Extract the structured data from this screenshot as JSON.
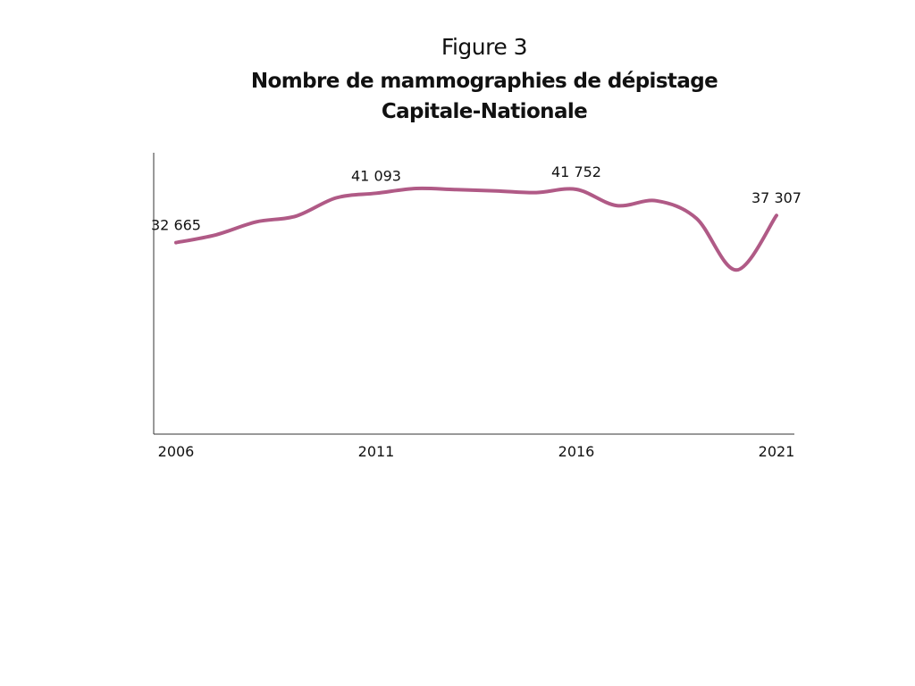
{
  "header": {
    "figure_label": "Figure 3",
    "title_line1": "Nombre de mammographies de dépistage",
    "title_line2": "Capitale-Nationale"
  },
  "chart_data": {
    "type": "line",
    "title": "Nombre de mammographies de dépistage Capitale-Nationale",
    "xlabel": "",
    "ylabel": "",
    "x_tick_labels": [
      "2006",
      "2011",
      "2016",
      "2021"
    ],
    "ylim": [
      0,
      48000
    ],
    "grid": false,
    "line_color": "#b05a86",
    "series": [
      {
        "x": [
          2006,
          2007,
          2008,
          2009,
          2010,
          2011,
          2012,
          2013,
          2014,
          2015,
          2016,
          2017,
          2018,
          2019,
          2020,
          2021
        ],
        "values": [
          32665,
          34000,
          36200,
          37200,
          40300,
          41093,
          41900,
          41700,
          41500,
          41200,
          41752,
          39000,
          39800,
          36800,
          28000,
          37307
        ]
      }
    ],
    "data_labels": [
      {
        "x": 2006,
        "text": "32 665"
      },
      {
        "x": 2011,
        "text": "41 093"
      },
      {
        "x": 2016,
        "text": "41 752"
      },
      {
        "x": 2021,
        "text": "37 307"
      }
    ]
  }
}
